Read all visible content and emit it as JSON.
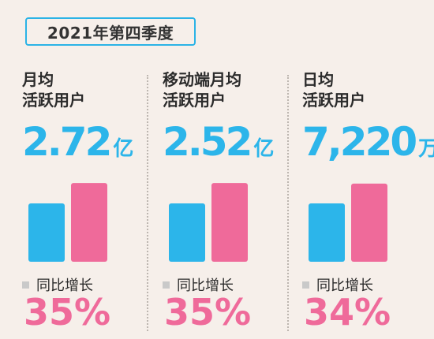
{
  "header": {
    "title": "2021年第四季度"
  },
  "colors": {
    "accent_blue": "#2cb5ea",
    "accent_pink": "#ef6a9a",
    "border_blue": "#2bb3e6",
    "background": "#f6efea"
  },
  "metrics": [
    {
      "label_line1": "月均",
      "label_line2": "活跃用户",
      "value": "2.72",
      "unit": "亿",
      "growth_label": "同比增长",
      "growth": "35%"
    },
    {
      "label_line1": "移动端月均",
      "label_line2": "活跃用户",
      "value": "2.52",
      "unit": "亿",
      "growth_label": "同比增长",
      "growth": "35%"
    },
    {
      "label_line1": "日均",
      "label_line2": "活跃用户",
      "value": "7,220",
      "unit": "万",
      "growth_label": "同比增长",
      "growth": "34%"
    }
  ],
  "chart_data": {
    "type": "bar",
    "title": "2021年第四季度",
    "categories": [
      "月均活跃用户",
      "移动端月均活跃用户",
      "日均活跃用户"
    ],
    "series": [
      {
        "values": [
          1,
          1,
          1
        ]
      },
      {
        "values": [
          1.35,
          1.35,
          1.34
        ]
      }
    ],
    "growth_labels": [
      "35%",
      "35%",
      "34%"
    ]
  }
}
